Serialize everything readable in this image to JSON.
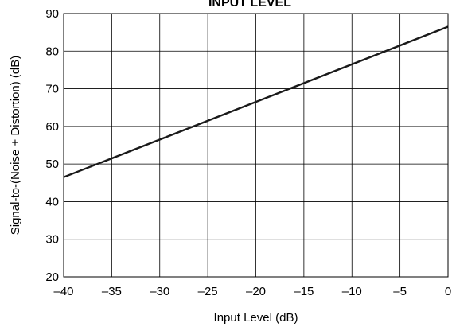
{
  "chart_data": {
    "type": "line",
    "title": "INPUT LEVEL",
    "xlabel": "Input Level (dB)",
    "ylabel": "Signal-to-(Noise + Distortion) (dB)",
    "xlim": [
      -40,
      0
    ],
    "ylim": [
      20,
      90
    ],
    "xticks": [
      -40,
      -35,
      -30,
      -25,
      -20,
      -15,
      -10,
      -5,
      0
    ],
    "xtick_labels": [
      "–40",
      "–35",
      "–30",
      "–25",
      "–20",
      "–15",
      "–10",
      "–5",
      "0"
    ],
    "yticks": [
      20,
      30,
      40,
      50,
      60,
      70,
      80,
      90
    ],
    "ytick_labels": [
      "20",
      "30",
      "40",
      "50",
      "60",
      "70",
      "80",
      "90"
    ],
    "grid": true,
    "series": [
      {
        "x": [
          -40,
          0
        ],
        "y": [
          46.5,
          86.5
        ]
      }
    ],
    "colors": {
      "line": "#1a1a1a",
      "grid": "#000000",
      "frame": "#000000"
    }
  }
}
